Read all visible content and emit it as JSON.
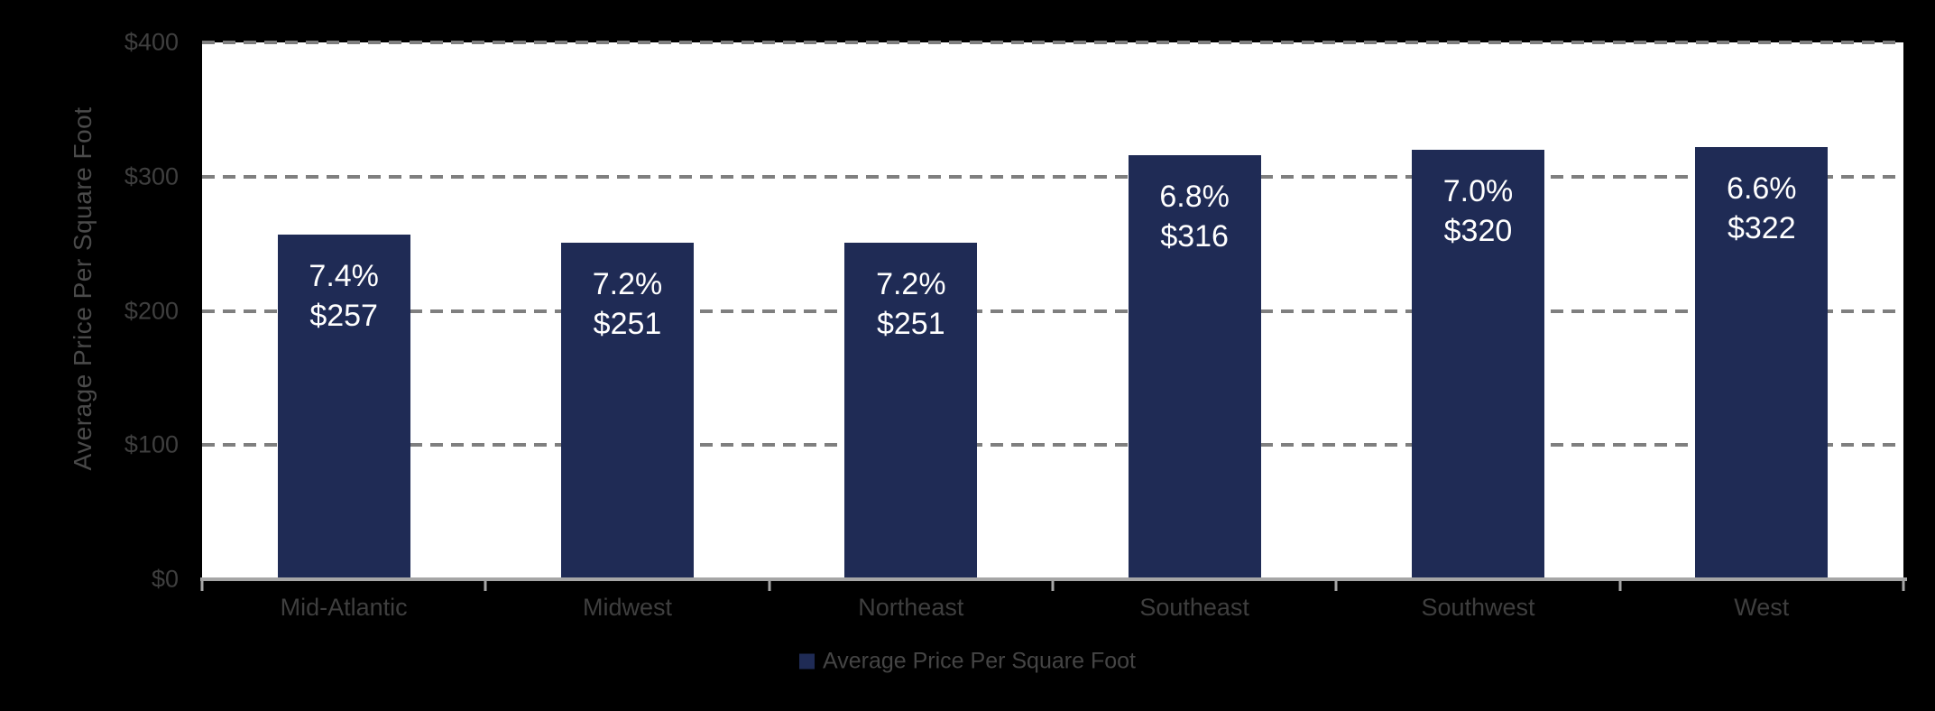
{
  "chart_data": {
    "type": "bar",
    "title": "",
    "categories": [
      "Mid-Atlantic",
      "Midwest",
      "Northeast",
      "Southeast",
      "Southwest",
      "West"
    ],
    "series": [
      {
        "name": "Average Price Per Square Foot",
        "values": [
          257,
          251,
          251,
          316,
          320,
          322
        ]
      }
    ],
    "percent_values": [
      7.4,
      7.2,
      7.2,
      6.8,
      7.0,
      6.6
    ],
    "point_labels": [
      {
        "pct": "7.4%",
        "price": "$257"
      },
      {
        "pct": "7.2%",
        "price": "$251"
      },
      {
        "pct": "7.2%",
        "price": "$251"
      },
      {
        "pct": "6.8%",
        "price": "$316"
      },
      {
        "pct": "7.0%",
        "price": "$320"
      },
      {
        "pct": "6.6%",
        "price": "$322"
      }
    ],
    "ylabel": "Average Price Per Square Foot",
    "xlabel": "",
    "ytick_labels": [
      "$400",
      "$300",
      "$200",
      "$100",
      "$0"
    ],
    "ylim": [
      0,
      400
    ],
    "gridline_interval": 100,
    "grid_style": "dashed",
    "legend": {
      "label": "Average Price Per Square Foot",
      "position": "bottom-center"
    }
  },
  "colors": {
    "background": "#000000",
    "plot_background": "#FFFFFF",
    "bar": "#1F2B55",
    "gridline": "#7F7F7F",
    "axis_line": "#A6A6A6",
    "tick_label": "#3F3F3F",
    "category_label": "#3F3F3F",
    "axis_title": "#4A4A4A",
    "bar_label_text": "#FFFFFF",
    "legend_text": "#454545"
  }
}
